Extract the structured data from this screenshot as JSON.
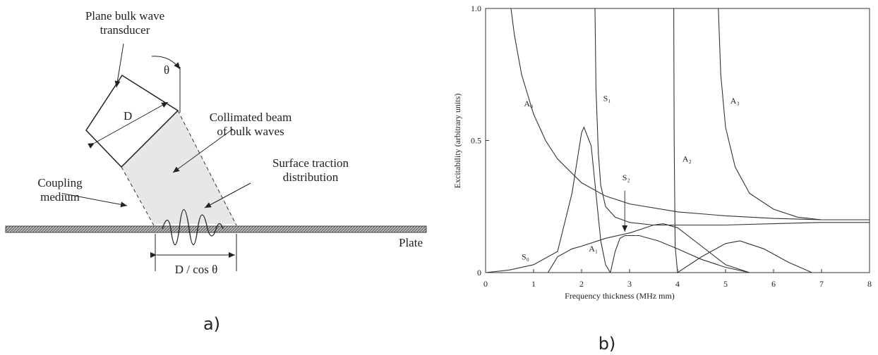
{
  "diagram": {
    "transducer_label": [
      "Plane bulk wave",
      "transducer"
    ],
    "angle": "θ",
    "width": "D",
    "beam_label": [
      "Collimated beam",
      "of bulk waves"
    ],
    "traction_label": [
      "Surface traction",
      "distribution"
    ],
    "coupling_label": [
      "Coupling",
      "medium"
    ],
    "plate_label": "Plate",
    "footprint": "D / cos θ",
    "caption": "a)"
  },
  "chart_data": {
    "type": "line",
    "caption": "b)",
    "xlabel": "Frequency thickness (MHz mm)",
    "ylabel": "Excitability (arbitrary units)",
    "xlim": [
      0,
      8
    ],
    "ylim": [
      0,
      1
    ],
    "xticks": [
      0,
      1,
      2,
      3,
      4,
      5,
      6,
      7,
      8
    ],
    "yticks": [
      0,
      0.5,
      {
        "value": 1,
        "label": "1.0"
      }
    ],
    "series": [
      {
        "name": "A₀",
        "color": "#333333",
        "x": [
          0.53,
          0.6,
          0.75,
          1,
          1.25,
          1.5,
          2,
          2.5,
          3,
          4,
          5,
          6,
          7,
          8
        ],
        "values": [
          1,
          0.9,
          0.75,
          0.6,
          0.5,
          0.43,
          0.34,
          0.29,
          0.26,
          0.23,
          0.215,
          0.205,
          0.2,
          0.2
        ]
      },
      {
        "name": "S₀",
        "color": "#333333",
        "x": [
          0,
          0.5,
          1,
          1.5,
          1.8,
          2,
          2.05,
          2.2,
          2.3,
          2.4,
          2.5,
          2.6
        ],
        "values": [
          0,
          0.01,
          0.03,
          0.08,
          0.3,
          0.53,
          0.55,
          0.48,
          0.3,
          0.12,
          0.03,
          0
        ]
      },
      {
        "name": "A₁",
        "color": "#333333",
        "x": [
          1.3,
          1.5,
          1.8,
          2,
          2.5,
          3,
          3.5,
          3.7,
          4,
          4.5,
          5,
          5.5
        ],
        "values": [
          0,
          0.06,
          0.09,
          0.1,
          0.13,
          0.15,
          0.18,
          0.185,
          0.17,
          0.1,
          0.03,
          0
        ]
      },
      {
        "name": "S₁",
        "color": "#333333",
        "x": [
          2.28,
          2.3,
          2.35,
          2.4,
          2.5,
          2.7,
          3,
          3.5,
          4,
          5,
          6,
          7,
          8
        ],
        "values": [
          1,
          0.7,
          0.45,
          0.33,
          0.25,
          0.21,
          0.19,
          0.18,
          0.18,
          0.18,
          0.185,
          0.19,
          0.19
        ]
      },
      {
        "name": "S₂",
        "color": "#333333",
        "x": [
          2.6,
          2.7,
          2.8,
          2.9,
          3.2,
          3.6,
          4,
          4.5,
          5,
          5.5
        ],
        "values": [
          0,
          0.08,
          0.13,
          0.14,
          0.14,
          0.12,
          0.09,
          0.05,
          0.02,
          0
        ]
      },
      {
        "name": "A₂",
        "color": "#333333",
        "x": [
          3.92,
          3.93,
          3.95,
          4,
          4.5,
          5,
          5.3,
          5.8,
          6.3,
          6.8
        ],
        "values": [
          1,
          0.5,
          0.1,
          0,
          0.06,
          0.11,
          0.12,
          0.09,
          0.04,
          0
        ]
      },
      {
        "name": "A₃",
        "color": "#333333",
        "x": [
          4.85,
          4.9,
          5,
          5.2,
          5.5,
          6,
          6.5,
          7,
          7.5,
          8
        ],
        "values": [
          1,
          0.75,
          0.55,
          0.4,
          0.3,
          0.24,
          0.21,
          0.2,
          0.2,
          0.2
        ]
      }
    ]
  }
}
